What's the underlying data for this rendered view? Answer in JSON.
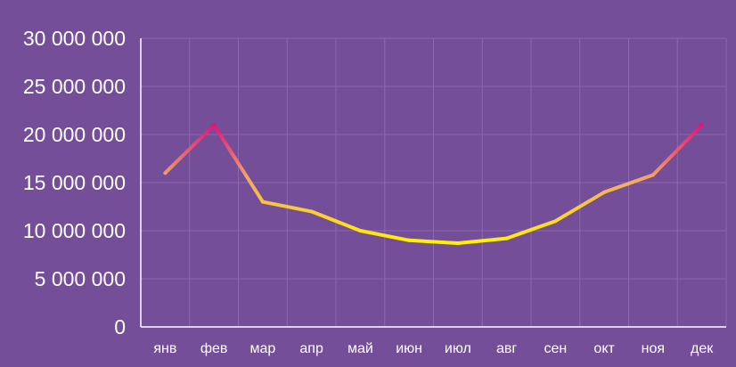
{
  "chart_data": {
    "type": "line",
    "categories": [
      "янв",
      "фев",
      "мар",
      "апр",
      "май",
      "июн",
      "июл",
      "авг",
      "сен",
      "окт",
      "ноя",
      "дек"
    ],
    "series": [
      {
        "values": [
          16000000,
          21000000,
          13000000,
          12000000,
          10000000,
          9000000,
          8700000,
          9200000,
          11000000,
          14000000,
          15800000,
          21000000
        ]
      }
    ],
    "y_ticks": [
      "0",
      "5 000 000",
      "10 000 000",
      "15 000 000",
      "20 000 000",
      "25 000 000",
      "30 000 000"
    ],
    "ylim": [
      0,
      30000000
    ],
    "grid": true,
    "legend": "none",
    "title": "",
    "xlabel": "",
    "ylabel": "",
    "colors": {
      "background": "#744e98",
      "grid": "#8a6aac",
      "axis": "#ffffff",
      "line_extreme": "#e2127a",
      "line_mid": "#f3a667",
      "line_low": "#fff200"
    }
  }
}
